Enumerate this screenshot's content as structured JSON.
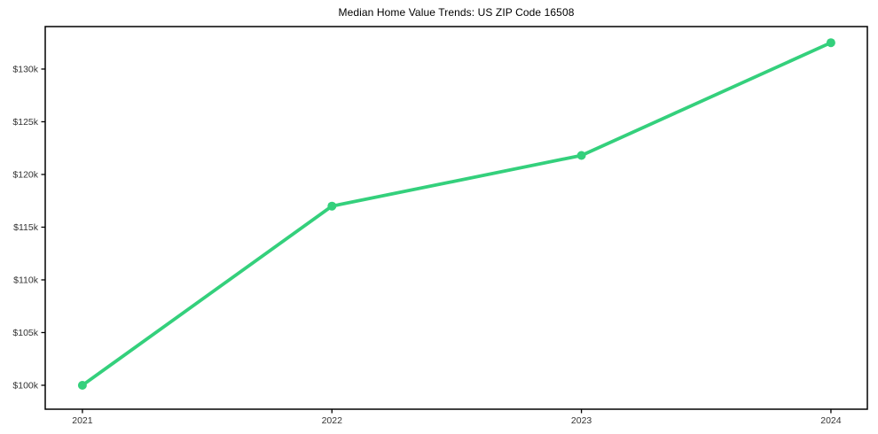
{
  "figure": {
    "title": "Median Home Value Trends: US ZIP Code 16508"
  },
  "chart_data": {
    "type": "line",
    "title": "Median Home Value Trends: US ZIP Code 16508",
    "xlabel": "",
    "ylabel": "",
    "x": [
      2021,
      2022,
      2023,
      2024
    ],
    "x_tick_labels": [
      "2021",
      "2022",
      "2023",
      "2024"
    ],
    "series": [
      {
        "name": "Median Home Value",
        "values": [
          100000,
          117000,
          121800,
          132500
        ]
      }
    ],
    "y_ticks": [
      100000,
      105000,
      110000,
      115000,
      120000,
      125000,
      130000
    ],
    "y_tick_labels": [
      "$100k",
      "$105k",
      "$110k",
      "$115k",
      "$120k",
      "$125k",
      "$130k"
    ],
    "xlim": [
      2020.851,
      2024.146
    ],
    "ylim": [
      97730,
      134030
    ],
    "grid": false,
    "legend_position": "none",
    "line_color": "#34d07c",
    "marker_color": "#34d07c",
    "axis_color": "#000000",
    "tick_label_color": "#333333",
    "background_color": "#ffffff"
  }
}
